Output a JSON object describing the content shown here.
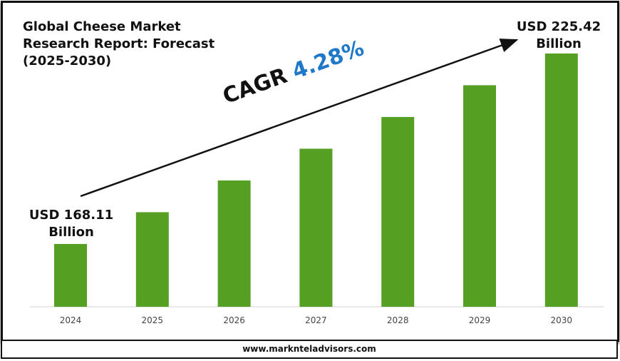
{
  "chart_data": {
    "type": "bar",
    "title": "Global Cheese Market\nResearch Report: Forecast\n(2025-2030)",
    "categories": [
      "2024",
      "2025",
      "2026",
      "2027",
      "2028",
      "2029",
      "2030"
    ],
    "values": [
      168.11,
      177.66,
      187.21,
      196.77,
      206.32,
      215.87,
      225.42
    ],
    "unit": "USD Billion",
    "annotations": {
      "start": {
        "line1": "USD 168.11",
        "line2": "Billion"
      },
      "end": {
        "line1": "USD 225.42",
        "line2": "Billion"
      },
      "cagr_label": "CAGR",
      "cagr_value": "4.28%"
    },
    "ylim": [
      149.2,
      225.42
    ],
    "grid": false,
    "legend": "none",
    "colors": {
      "bar": "#55a023",
      "cagr_value": "#1f78c8",
      "axis": "#d0d0d0"
    }
  },
  "footer": {
    "url": "www.marknteladvisors.com"
  }
}
